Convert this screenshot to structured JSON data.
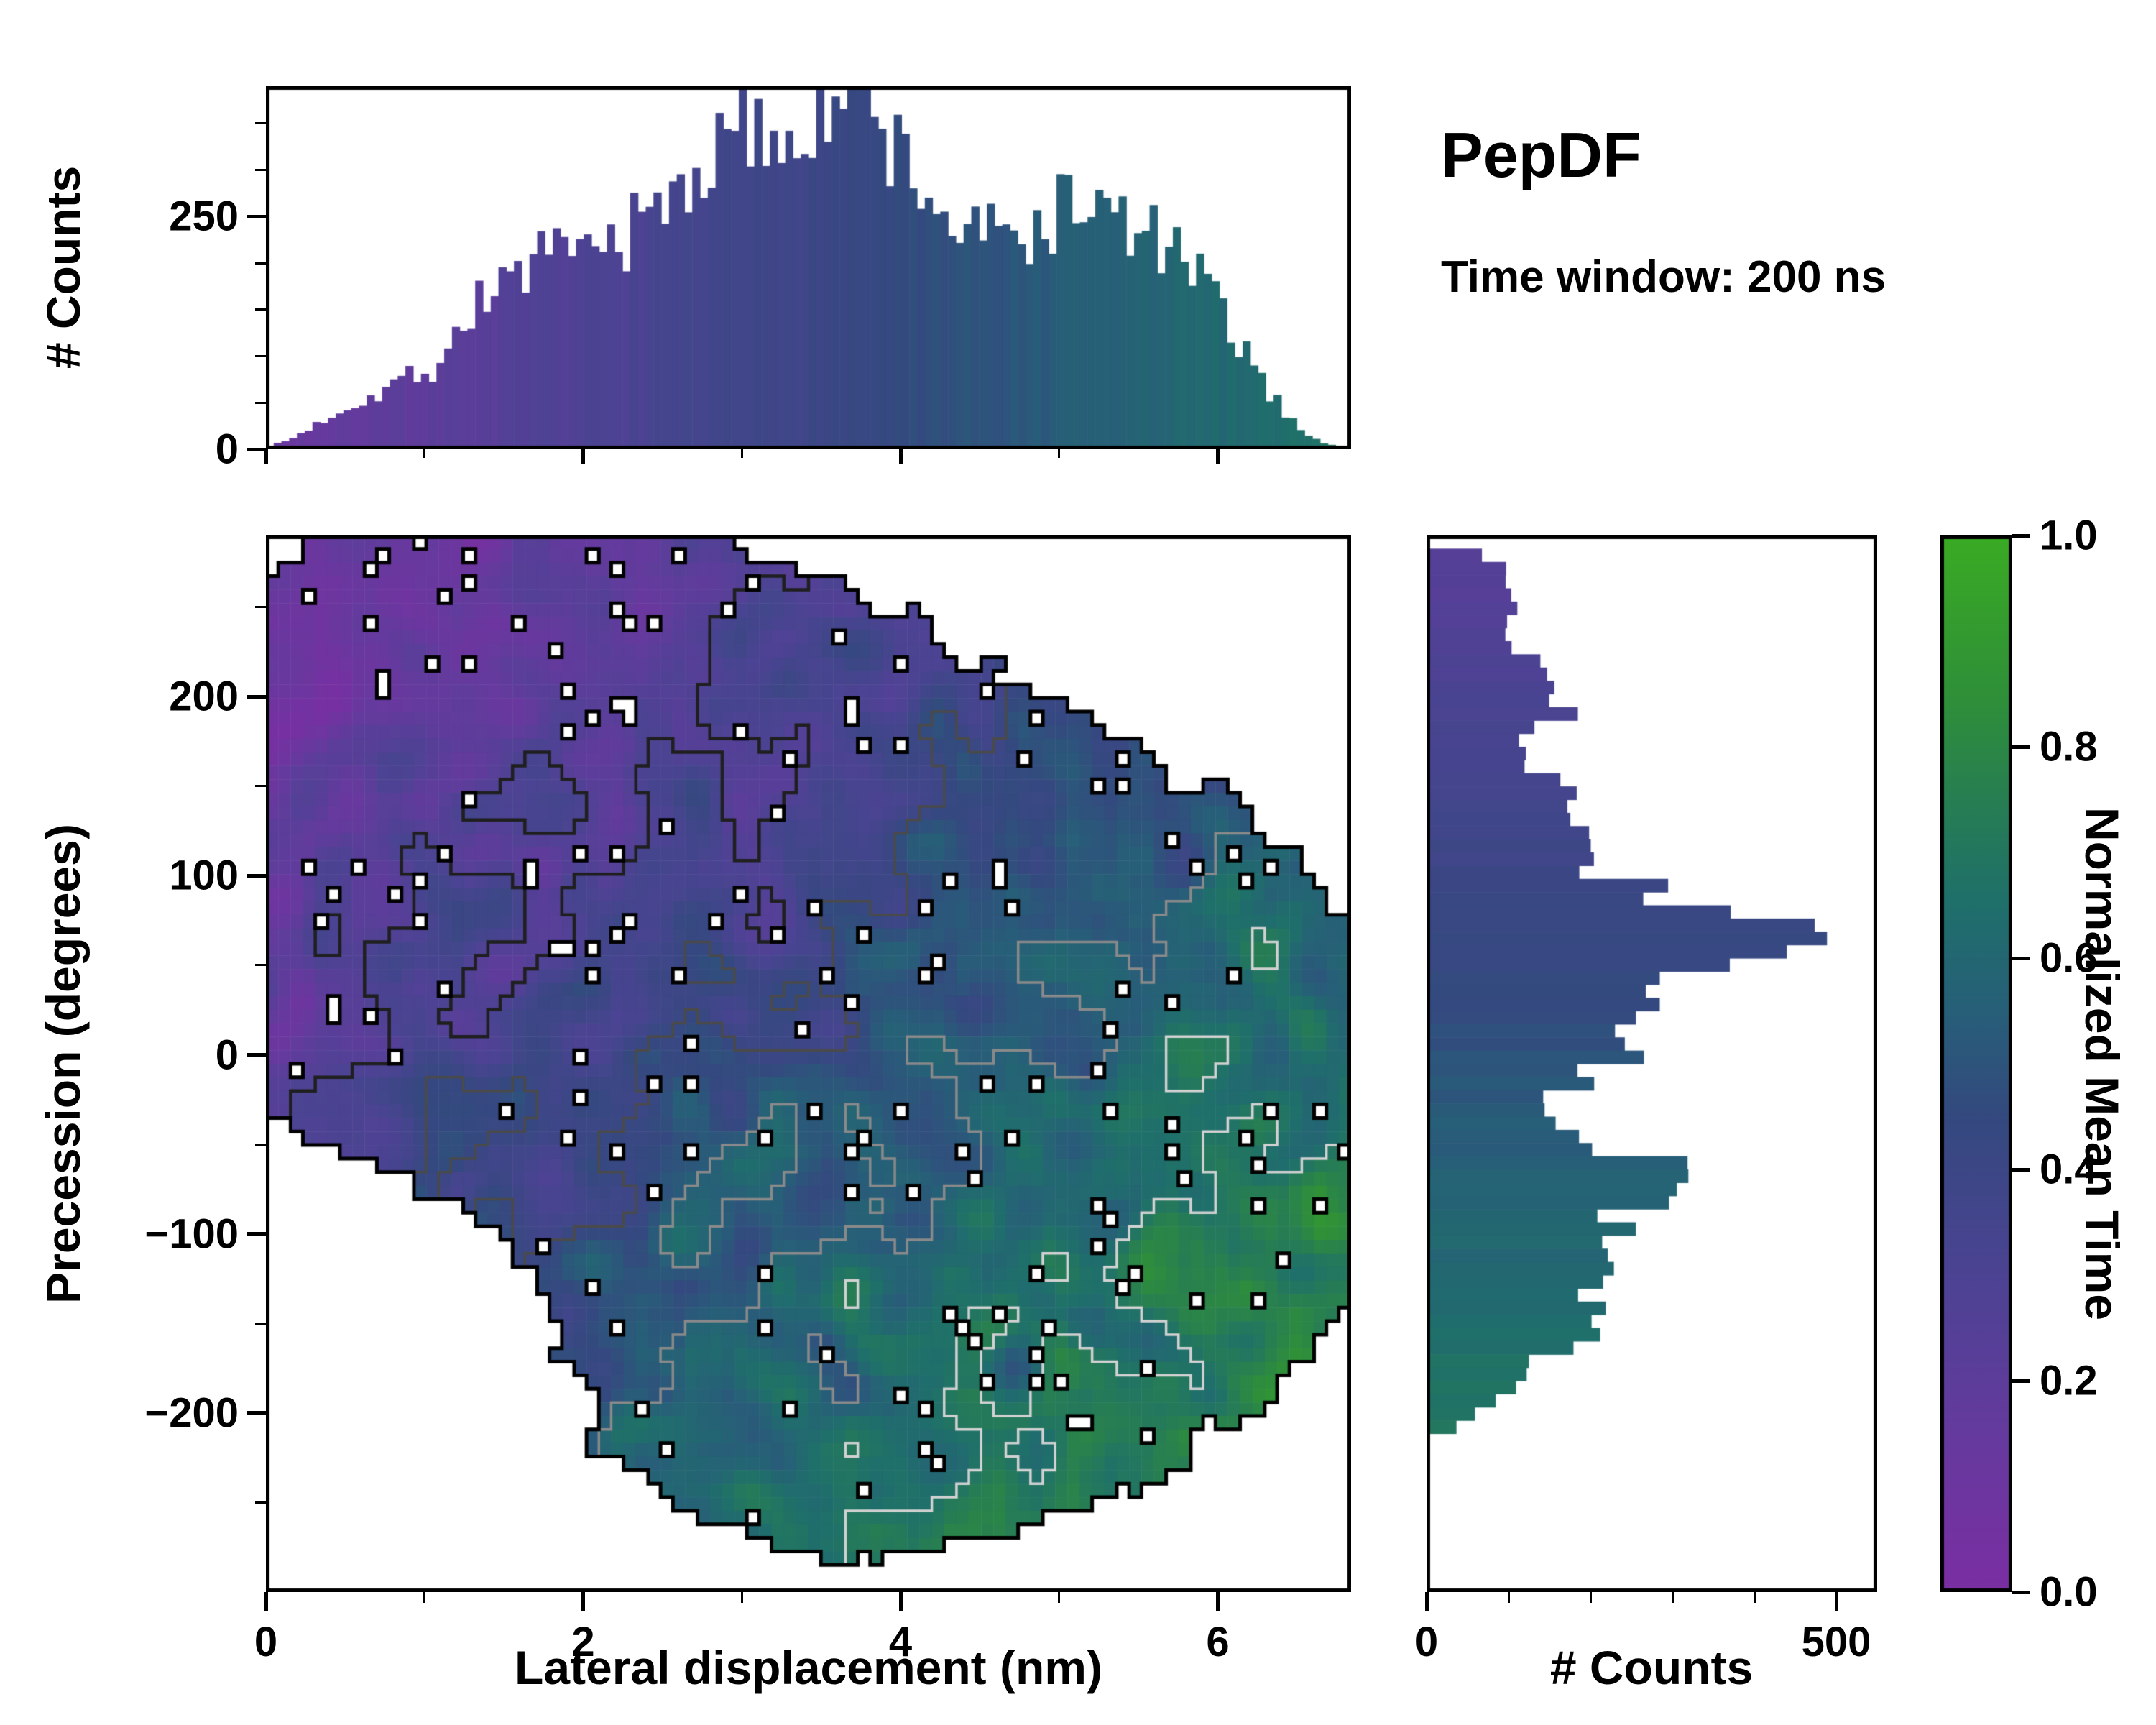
{
  "annotations": {
    "title": "PepDF",
    "subtitle": "Time window: 200 ns"
  },
  "colormap": {
    "stops": [
      [
        0.0,
        "#7a2ea2"
      ],
      [
        0.15,
        "#653a9e"
      ],
      [
        0.3,
        "#4c4393"
      ],
      [
        0.45,
        "#34497f"
      ],
      [
        0.55,
        "#275f78"
      ],
      [
        0.65,
        "#1f6f6b"
      ],
      [
        0.75,
        "#277e52"
      ],
      [
        0.85,
        "#2f9038"
      ],
      [
        1.0,
        "#3aab24"
      ]
    ]
  },
  "chart_data": [
    {
      "type": "bar",
      "name": "lateral-displacement-histogram",
      "ylabel": "# Counts",
      "xlim": [
        0,
        6.84
      ],
      "ylim": [
        0,
        390
      ],
      "bins": 140,
      "yticks": [
        0,
        250
      ],
      "ytick_labels": [
        "0",
        "250"
      ],
      "yminor": [
        50,
        100,
        150,
        200,
        300,
        350
      ],
      "envelope_x": [
        0,
        0.15,
        0.3,
        0.5,
        0.7,
        0.9,
        1.05,
        1.15,
        1.3,
        1.5,
        1.7,
        1.9,
        2.1,
        2.3,
        2.5,
        2.7,
        2.9,
        3.1,
        3.3,
        3.5,
        3.65,
        3.8,
        3.95,
        4.1,
        4.3,
        4.5,
        4.7,
        4.9,
        5.1,
        5.3,
        5.5,
        5.7,
        5.9,
        6.05,
        6.2,
        6.35,
        6.5,
        6.65,
        6.84
      ],
      "envelope_counts": [
        2,
        10,
        25,
        45,
        60,
        80,
        85,
        110,
        150,
        185,
        200,
        205,
        215,
        235,
        260,
        300,
        325,
        340,
        350,
        370,
        385,
        355,
        330,
        290,
        245,
        230,
        225,
        240,
        270,
        250,
        235,
        215,
        180,
        140,
        95,
        55,
        25,
        8,
        0
      ],
      "bar_color_rule": {
        "v_at_x0": 0.12,
        "v_per_nm": 0.082
      }
    },
    {
      "type": "heatmap",
      "name": "precession-vs-lateral-heatmap",
      "xlabel": "Lateral displacement (nm)",
      "ylabel": "Precession (degrees)",
      "xlim": [
        0,
        6.84
      ],
      "ylim": [
        -300,
        290
      ],
      "xticks": [
        0,
        2,
        4,
        6
      ],
      "xtick_labels": [
        "0",
        "2",
        "4",
        "6"
      ],
      "xminor": [
        1,
        3,
        5
      ],
      "yticks": [
        -200,
        -100,
        0,
        100,
        200
      ],
      "ytick_labels": [
        "−200",
        "−100",
        "0",
        "100",
        "200"
      ],
      "yminor": [
        -250,
        -150,
        -50,
        50,
        150,
        250
      ],
      "nx": 88,
      "ny": 78,
      "blobs": [
        [
          1.3,
          215,
          1.1,
          70,
          1.3
        ],
        [
          2.6,
          160,
          1.2,
          75,
          1
        ],
        [
          2.2,
          60,
          1.4,
          85,
          1
        ],
        [
          3.6,
          90,
          1.4,
          80,
          1
        ],
        [
          4.3,
          20,
          1.5,
          90,
          1
        ],
        [
          3.9,
          -75,
          1.3,
          80,
          1
        ],
        [
          4.8,
          -60,
          1.3,
          80,
          1
        ],
        [
          4.3,
          -150,
          1.3,
          70,
          1
        ],
        [
          5.6,
          0,
          0.9,
          70,
          1
        ],
        [
          0.6,
          40,
          0.7,
          60,
          1
        ],
        [
          3.6,
          -205,
          0.9,
          50,
          1
        ]
      ],
      "occupancy_threshold": 0.55,
      "edge_noise": 0.5,
      "dropout": 0.035,
      "value_offset": 0.05,
      "value_span": 0.85,
      "value_noise": 0.38,
      "contour_levels": [
        {
          "level": 0.28,
          "color": "#1f1f1f"
        },
        {
          "level": 0.42,
          "color": "#4a4a4a"
        },
        {
          "level": 0.55,
          "color": "#8a8a8a"
        },
        {
          "level": 0.68,
          "color": "#d2d2d2"
        }
      ]
    },
    {
      "type": "bar",
      "name": "precession-histogram",
      "orientation": "horizontal",
      "xlabel": "# Counts",
      "xlim": [
        0,
        550
      ],
      "ylim": [
        -300,
        290
      ],
      "bins": 80,
      "xticks": [
        0,
        500
      ],
      "xtick_labels": [
        "0",
        "500"
      ],
      "xminor": [
        100,
        200,
        300,
        400
      ],
      "envelope_y": [
        -210,
        -200,
        -190,
        -180,
        -170,
        -160,
        -150,
        -140,
        -130,
        -120,
        -110,
        -100,
        -90,
        -80,
        -70,
        -60,
        -50,
        -40,
        -30,
        -20,
        -10,
        0,
        10,
        20,
        30,
        40,
        50,
        60,
        70,
        80,
        90,
        100,
        110,
        120,
        130,
        140,
        150,
        160,
        170,
        180,
        190,
        200,
        210,
        220,
        230,
        240,
        250,
        260,
        283
      ],
      "envelope_counts": [
        25,
        55,
        90,
        120,
        150,
        185,
        195,
        205,
        215,
        225,
        235,
        245,
        250,
        262,
        300,
        282,
        220,
        160,
        148,
        172,
        205,
        228,
        222,
        230,
        258,
        298,
        338,
        420,
        478,
        330,
        268,
        230,
        206,
        188,
        172,
        152,
        165,
        131,
        110,
        138,
        158,
        156,
        150,
        141,
        104,
        100,
        116,
        130,
        62
      ],
      "bar_color_rule": {
        "v_top": 0.22,
        "v_bottom": 0.78
      }
    },
    {
      "type": "colorbar",
      "name": "normalized-mean-time-colorbar",
      "label": "Normalized Mean Time",
      "range": [
        0,
        1
      ],
      "ticks": [
        0,
        0.2,
        0.4,
        0.6,
        0.8,
        1
      ],
      "tick_labels": [
        "0.0",
        "0.2",
        "0.4",
        "0.6",
        "0.8",
        "1.0"
      ]
    }
  ]
}
